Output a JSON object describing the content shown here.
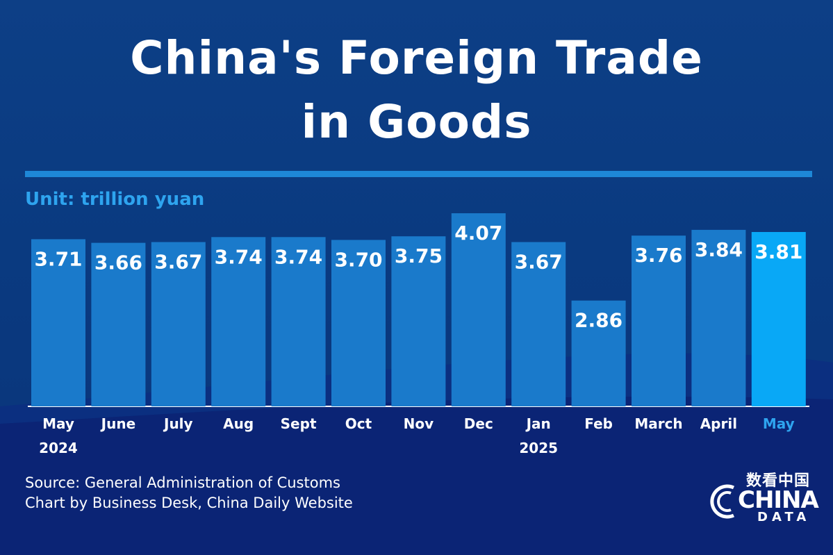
{
  "title_line1": "China's Foreign Trade",
  "title_line2": "in Goods",
  "unit": "Unit: trillion yuan",
  "source_line1": "Source: General Administration of Customs",
  "source_line2": "Chart by Business Desk, China Daily Website",
  "logo": {
    "chinese": "数看中国",
    "word1": "CHINA",
    "word2": "DATA"
  },
  "colors": {
    "bar": "#1a7acb",
    "highlight_bar": "#09a8f6",
    "highlight_label": "#2ea4ef",
    "value_label": "#ffffff",
    "axis_label": "#ffffff"
  },
  "chart_data": {
    "type": "bar",
    "title": "China's Foreign Trade in Goods",
    "ylabel": "Unit: trillion yuan",
    "categories": [
      "May",
      "June",
      "July",
      "Aug",
      "Sept",
      "Oct",
      "Nov",
      "Dec",
      "Jan",
      "Feb",
      "March",
      "April",
      "May"
    ],
    "category_sublabels": [
      "2024",
      "",
      "",
      "",
      "",
      "",
      "",
      "",
      "2025",
      "",
      "",
      "",
      ""
    ],
    "values": [
      3.71,
      3.66,
      3.67,
      3.74,
      3.74,
      3.7,
      3.75,
      4.07,
      3.67,
      2.86,
      3.76,
      3.84,
      3.81
    ],
    "value_labels": [
      "3.71",
      "3.66",
      "3.67",
      "3.74",
      "3.74",
      "3.70",
      "3.75",
      "4.07",
      "3.67",
      "2.86",
      "3.76",
      "3.84",
      "3.81"
    ],
    "highlight_index": 12,
    "ylim": [
      0,
      4.07
    ],
    "grid": false,
    "legend": "none"
  }
}
